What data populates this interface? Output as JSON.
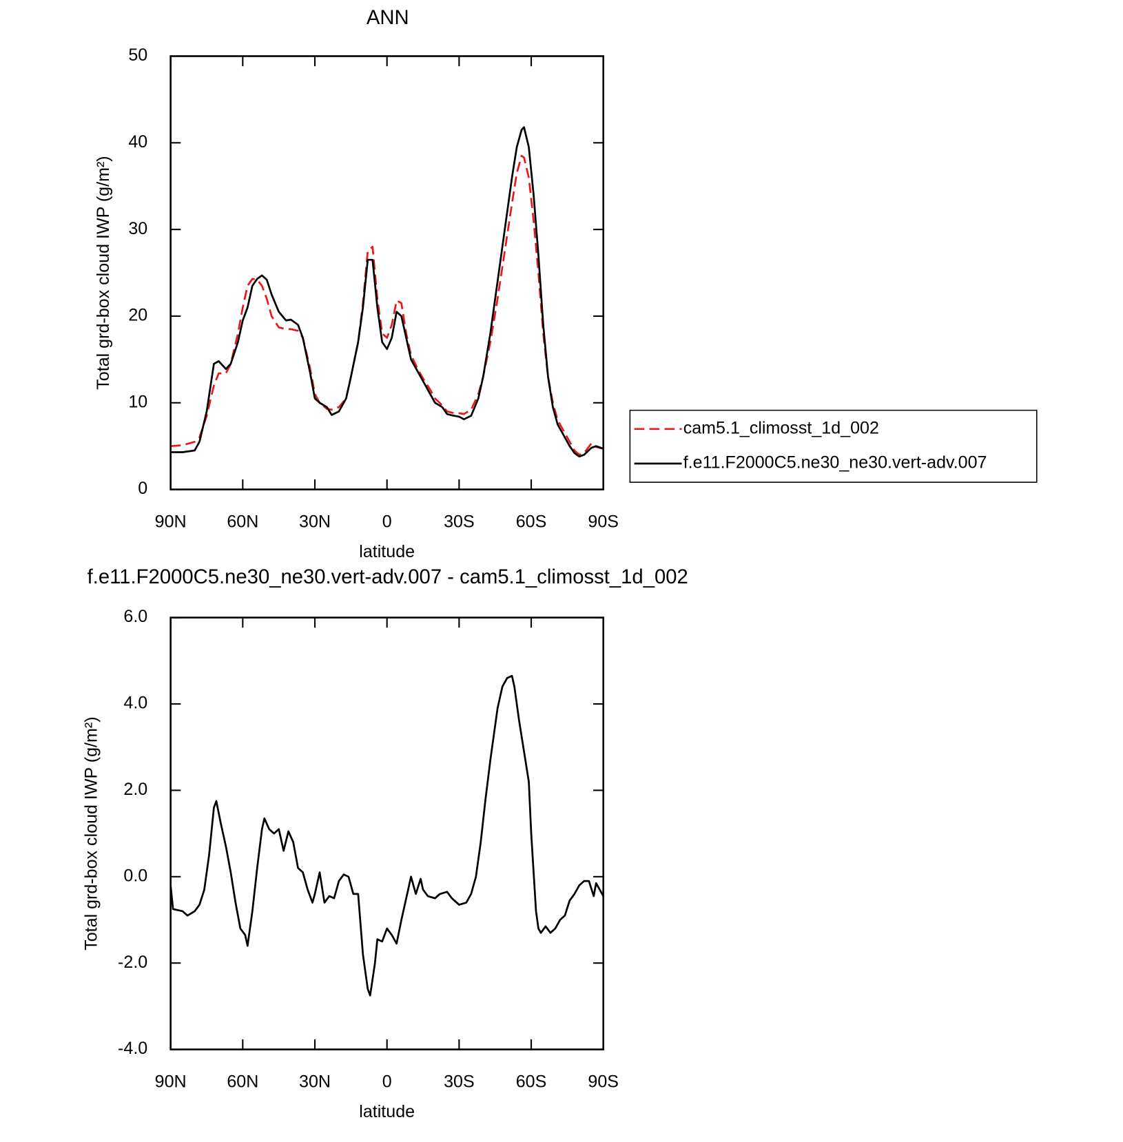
{
  "chart_data": [
    {
      "type": "line",
      "title": "ANN",
      "xlabel": "latitude",
      "ylabel": "Total grd-box cloud IWP (g/m²)",
      "x": [
        90,
        85,
        80,
        78,
        75,
        72,
        70,
        67,
        65,
        62,
        60,
        58,
        56,
        54,
        52,
        50,
        48,
        45,
        42,
        40,
        37,
        35,
        32,
        30,
        28,
        25,
        23,
        20,
        17,
        15,
        12,
        10,
        8,
        6,
        4,
        2,
        0,
        -2,
        -4,
        -6,
        -8,
        -10,
        -13,
        -15,
        -18,
        -20,
        -23,
        -25,
        -28,
        -30,
        -32,
        -35,
        -38,
        -40,
        -43,
        -46,
        -49,
        -52,
        -54,
        -56,
        -57,
        -59,
        -61,
        -63,
        -65,
        -67,
        -69,
        -71,
        -74,
        -76,
        -78,
        -80,
        -82,
        -85,
        -87,
        -90
      ],
      "xlim": [
        90,
        -90
      ],
      "xticks": [
        {
          "value": 90,
          "label": "90N"
        },
        {
          "value": 60,
          "label": "60N"
        },
        {
          "value": 30,
          "label": "30N"
        },
        0,
        {
          "value": -30,
          "label": "30S"
        },
        {
          "value": -60,
          "label": "60S"
        },
        {
          "value": -90,
          "label": "90S"
        }
      ],
      "ylim": [
        0,
        50
      ],
      "yticks": [
        0,
        10,
        20,
        30,
        40,
        50
      ],
      "legend": "right",
      "series": [
        {
          "name": "cam5.1_climosst_1d_002",
          "color": "#e8191c",
          "dash": true,
          "values": [
            5,
            5.1,
            5.5,
            6,
            8.5,
            12,
            13.4,
            13.4,
            14.5,
            18,
            21,
            23.5,
            24.3,
            24.2,
            23.5,
            22,
            20,
            18.7,
            18.5,
            18.5,
            18.3,
            17.5,
            14,
            11,
            10,
            9.3,
            9.2,
            9.5,
            10.5,
            13,
            17,
            21.5,
            27.5,
            28,
            22,
            18,
            17.5,
            19,
            21.8,
            21.5,
            18,
            15.5,
            13.8,
            12.8,
            11.5,
            10.5,
            9.7,
            9,
            8.8,
            8.8,
            8.7,
            9.2,
            11,
            13,
            17,
            22,
            27.5,
            33,
            36.5,
            38.5,
            38.3,
            36,
            31,
            25,
            18,
            13,
            10,
            8,
            6.5,
            5.5,
            4.5,
            4,
            4.2,
            5.3,
            4.9,
            4.7
          ]
        },
        {
          "name": "f.e11.F2000C5.ne30_ne30.vert-adv.007",
          "color": "#000000",
          "dash": false,
          "values": [
            4.3,
            4.3,
            4.5,
            5.5,
            9,
            14.5,
            14.8,
            13.9,
            14.5,
            17,
            19.5,
            21,
            23.5,
            24.3,
            24.7,
            24.2,
            22.5,
            20.5,
            19.5,
            19.6,
            19,
            17.5,
            13.5,
            10.5,
            10,
            9.5,
            8.6,
            9,
            10.5,
            13,
            17,
            21,
            26.5,
            26.5,
            21,
            17,
            16.2,
            17.5,
            20.5,
            20,
            17.5,
            15,
            13.5,
            12.5,
            11,
            10,
            9.5,
            8.7,
            8.5,
            8.4,
            8.1,
            8.5,
            10.5,
            13,
            18,
            24,
            30,
            36,
            39.5,
            41.5,
            41.8,
            39.5,
            34,
            27,
            19,
            13,
            9.5,
            7.5,
            6,
            5,
            4.2,
            3.8,
            4,
            4.8,
            5,
            4.7
          ]
        }
      ]
    },
    {
      "type": "line",
      "title": "f.e11.F2000C5.ne30_ne30.vert-adv.007 - cam5.1_climosst_1d_002",
      "xlabel": "latitude",
      "ylabel": "Total grd-box cloud IWP (g/m²)",
      "x": [
        90,
        89,
        85,
        83,
        80,
        78,
        76,
        74,
        72,
        71,
        69,
        67,
        65,
        63,
        61,
        59,
        58,
        56,
        54,
        52,
        51,
        49,
        47,
        45,
        43,
        41,
        39,
        37,
        35,
        33,
        31,
        30,
        28,
        26,
        24,
        22,
        20,
        18,
        16,
        14,
        12,
        10,
        8,
        7,
        5,
        4,
        2,
        0,
        -2,
        -4,
        -6,
        -8,
        -10,
        -11,
        -12,
        -14,
        -15,
        -17,
        -20,
        -22,
        -25,
        -27,
        -30,
        -33,
        -35,
        -37,
        -39,
        -41,
        -43,
        -45,
        -46,
        -48,
        -50,
        -52,
        -53,
        -55,
        -57,
        -59,
        -60,
        -62,
        -63,
        -64,
        -66,
        -68,
        -70,
        -72,
        -74,
        -76,
        -78,
        -80,
        -82,
        -84,
        -86,
        -87,
        -90
      ],
      "xlim": [
        90,
        -90
      ],
      "xticks": [
        {
          "value": 90,
          "label": "90N"
        },
        {
          "value": 60,
          "label": "60N"
        },
        {
          "value": 30,
          "label": "30N"
        },
        0,
        {
          "value": -30,
          "label": "30S"
        },
        {
          "value": -60,
          "label": "60S"
        },
        {
          "value": -90,
          "label": "90S"
        }
      ],
      "ylim": [
        -4,
        6
      ],
      "yticks": [
        {
          "value": -4,
          "label": "-4.0"
        },
        {
          "value": -2,
          "label": "-2.0"
        },
        {
          "value": 0,
          "label": "0.0"
        },
        {
          "value": 2,
          "label": "2.0"
        },
        {
          "value": 4,
          "label": "4.0"
        },
        {
          "value": 6,
          "label": "6.0"
        }
      ],
      "series": [
        {
          "color": "#000000",
          "dash": false,
          "values": [
            -0.2,
            -0.75,
            -0.8,
            -0.9,
            -0.8,
            -0.65,
            -0.3,
            0.5,
            1.6,
            1.75,
            1.2,
            0.7,
            0.1,
            -0.6,
            -1.2,
            -1.35,
            -1.6,
            -0.8,
            0.2,
            1.1,
            1.35,
            1.1,
            1.0,
            1.1,
            0.6,
            1.05,
            0.8,
            0.2,
            0.1,
            -0.3,
            -0.6,
            -0.4,
            0.1,
            -0.6,
            -0.45,
            -0.5,
            -0.1,
            0.05,
            0.0,
            -0.4,
            -0.4,
            -1.8,
            -2.6,
            -2.75,
            -2.0,
            -1.45,
            -1.5,
            -1.2,
            -1.35,
            -1.55,
            -1.0,
            -0.5,
            0.0,
            -0.2,
            -0.4,
            -0.05,
            -0.3,
            -0.45,
            -0.5,
            -0.4,
            -0.35,
            -0.5,
            -0.65,
            -0.6,
            -0.4,
            0.0,
            0.8,
            1.8,
            2.7,
            3.5,
            3.9,
            4.4,
            4.6,
            4.65,
            4.4,
            3.6,
            2.9,
            2.2,
            1.0,
            -0.8,
            -1.2,
            -1.3,
            -1.15,
            -1.3,
            -1.2,
            -1.0,
            -0.9,
            -0.55,
            -0.4,
            -0.2,
            -0.1,
            -0.1,
            -0.45,
            -0.15,
            -0.45
          ]
        }
      ]
    }
  ]
}
